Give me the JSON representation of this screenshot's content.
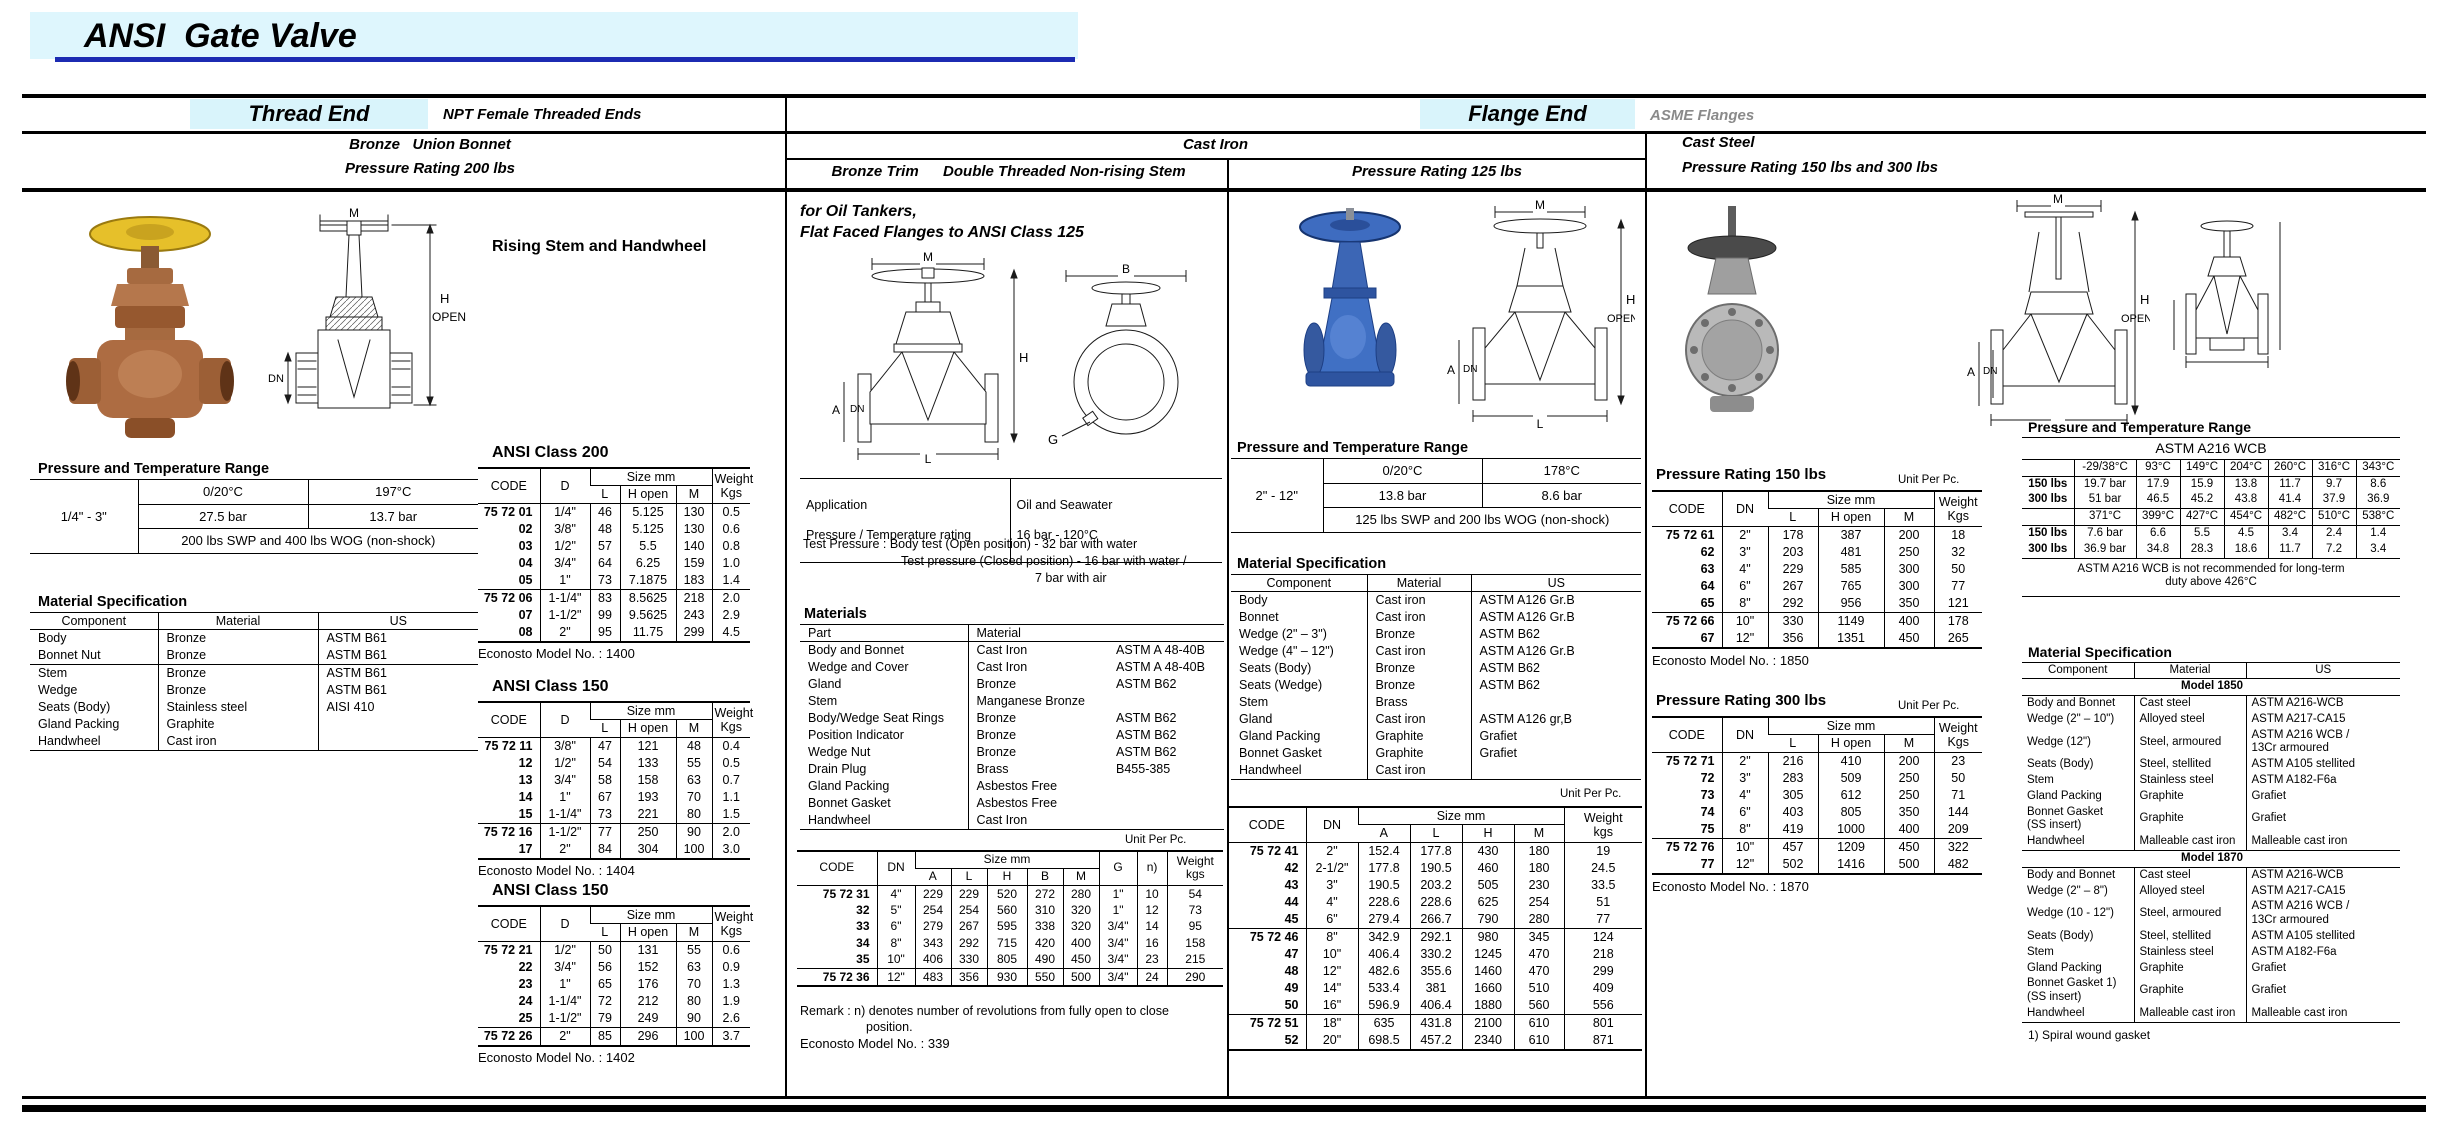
{
  "colors": {
    "accent_blue": "#1c2bb2",
    "band_cyan": "#def6fd",
    "label_cyan": "#d9f4fb",
    "asme_gray": "#8a8a8a"
  },
  "labels": {
    "code": "CODE",
    "d": "D",
    "dn": "DN",
    "size_mm": "Size mm",
    "l": "L",
    "h_open": "H open",
    "m": "M",
    "a": "A",
    "h": "H",
    "b": "B",
    "g": "G",
    "n": "n)",
    "open": "OPEN",
    "weight_kgs": "Weight\nKgs",
    "weight_kgs_lc": "Weight\nkgs",
    "component": "Component",
    "material": "Material",
    "us": "US",
    "part": "Part",
    "unit_per_pc": "Unit Per Pc."
  },
  "diag": {
    "m": "M",
    "h": "H",
    "open": "OPEN",
    "dn": "DN",
    "l": "L",
    "a": "A",
    "b": "B",
    "g": "G"
  },
  "header": {
    "title": "ANSI  Gate Valve",
    "thread_end": "Thread End",
    "npt": "NPT Female Threaded Ends",
    "flange_end": "Flange End",
    "asme": "ASME Flanges",
    "bronze_union": "Bronze   Union Bonnet",
    "rating200": "Pressure Rating 200 lbs",
    "cast_iron": "Cast Iron",
    "bronze_trim_1": "Bronze Trim",
    "bronze_trim_2": "Double Threaded Non-rising Stem",
    "rating125": "Pressure Rating 125 lbs",
    "cast_steel": "Cast Steel",
    "cast_steel_sub": "Pressure Rating 150 lbs and 300 lbs"
  },
  "col1": {
    "rising_stem": "Rising Stem and Handwheel",
    "ptr_title": "Pressure and Temperature Range",
    "ptr": {
      "size": "1/4\" - 3\"",
      "t1": "0/20°C",
      "t2": "197°C",
      "p1": "27.5 bar",
      "p2": "13.7 bar",
      "note": "200 lbs SWP and 400 lbs WOG (non-shock)"
    },
    "matspec_title": "Material Specification",
    "matspec_g1": [
      [
        "Body",
        "Bronze",
        "ASTM B61"
      ],
      [
        "Bonnet Nut",
        "Bronze",
        "ASTM B61"
      ]
    ],
    "matspec_g2": [
      [
        "Stem",
        "Bronze",
        "ASTM B61"
      ],
      [
        "Wedge",
        "Bronze",
        "ASTM B61"
      ],
      [
        "Seats (Body)",
        "Stainless steel",
        "AISI 410"
      ],
      [
        "Gland Packing",
        "Graphite",
        ""
      ],
      [
        "Handwheel",
        "Cast iron",
        ""
      ]
    ],
    "ansi200": {
      "title": "ANSI Class 200",
      "model": "Econosto Model No. : 1400",
      "g1": [
        [
          "75 72 01",
          "1/4\"",
          "46",
          "5.125",
          "130",
          "0.5"
        ],
        [
          "02",
          "3/8\"",
          "48",
          "5.125",
          "130",
          "0.6"
        ],
        [
          "03",
          "1/2\"",
          "57",
          "5.5",
          "140",
          "0.8"
        ],
        [
          "04",
          "3/4\"",
          "64",
          "6.25",
          "159",
          "1.0"
        ],
        [
          "05",
          "1\"",
          "73",
          "7.1875",
          "183",
          "1.4"
        ]
      ],
      "g2": [
        [
          "75 72 06",
          "1-1/4\"",
          "83",
          "8.5625",
          "218",
          "2.0"
        ],
        [
          "07",
          "1-1/2\"",
          "99",
          "9.5625",
          "243",
          "2.9"
        ],
        [
          "08",
          "2\"",
          "95",
          "11.75",
          "299",
          "4.5"
        ]
      ]
    },
    "ansi150a": {
      "title": "ANSI Class 150",
      "model": "Econosto Model No. : 1404",
      "g1": [
        [
          "75 72 11",
          "3/8\"",
          "47",
          "121",
          "48",
          "0.4"
        ],
        [
          "12",
          "1/2\"",
          "54",
          "133",
          "55",
          "0.5"
        ],
        [
          "13",
          "3/4\"",
          "58",
          "158",
          "63",
          "0.7"
        ],
        [
          "14",
          "1\"",
          "67",
          "193",
          "70",
          "1.1"
        ],
        [
          "15",
          "1-1/4\"",
          "73",
          "221",
          "80",
          "1.5"
        ]
      ],
      "g2": [
        [
          "75 72 16",
          "1-1/2\"",
          "77",
          "250",
          "90",
          "2.0"
        ],
        [
          "17",
          "2\"",
          "84",
          "304",
          "100",
          "3.0"
        ]
      ]
    },
    "ansi150b": {
      "title": "ANSI Class 150",
      "model": "Econosto Model No. : 1402",
      "g1": [
        [
          "75 72 21",
          "1/2\"",
          "50",
          "131",
          "55",
          "0.6"
        ],
        [
          "22",
          "3/4\"",
          "56",
          "152",
          "63",
          "0.9"
        ],
        [
          "23",
          "1\"",
          "65",
          "176",
          "70",
          "1.3"
        ],
        [
          "24",
          "1-1/4\"",
          "72",
          "212",
          "80",
          "1.9"
        ],
        [
          "25",
          "1-1/2\"",
          "79",
          "249",
          "90",
          "2.6"
        ]
      ],
      "g2": [
        [
          "75 72 26",
          "2\"",
          "85",
          "296",
          "100",
          "3.7"
        ]
      ]
    }
  },
  "col2": {
    "heading1": "for Oil Tankers,",
    "heading2": "Flat Faced Flanges to ANSI Class 125",
    "app": {
      "r1c1": "Application",
      "r2c1": "Pressure / Temperature rating",
      "r1c2": "Oil and Seawater",
      "r2c2": "16 bar - 120°C"
    },
    "test1": "Test Pressure : Body test (Open position) - 32 bar with water",
    "test2": "Test pressure (Closed position) - 16 bar with water /",
    "test3": "7 bar with air",
    "materials_title": "Materials",
    "materials": [
      [
        "Body and Bonnet",
        "Cast Iron",
        "ASTM A 48-40B"
      ],
      [
        "Wedge and Cover",
        "Cast Iron",
        "ASTM A 48-40B"
      ],
      [
        "Gland",
        "Bronze",
        "ASTM B62"
      ],
      [
        "Stem",
        "Manganese Bronze",
        ""
      ],
      [
        "Body/Wedge Seat Rings",
        "Bronze",
        "ASTM B62"
      ],
      [
        "Position Indicator",
        "Bronze",
        "ASTM B62"
      ],
      [
        "Wedge Nut",
        "Bronze",
        "ASTM B62"
      ],
      [
        "Drain Plug",
        "Brass",
        "B455-385"
      ],
      [
        "Gland Packing",
        "Asbestos Free",
        ""
      ],
      [
        "Bonnet Gasket",
        "Asbestos Free",
        ""
      ],
      [
        "Handwheel",
        "Cast Iron",
        ""
      ]
    ],
    "codes_g1": [
      [
        "75 72 31",
        "4\"",
        "229",
        "229",
        "520",
        "272",
        "280",
        "1\"",
        "10",
        "54"
      ],
      [
        "32",
        "5\"",
        "254",
        "254",
        "560",
        "310",
        "320",
        "1\"",
        "12",
        "73"
      ],
      [
        "33",
        "6\"",
        "279",
        "267",
        "595",
        "338",
        "320",
        "3/4\"",
        "14",
        "95"
      ],
      [
        "34",
        "8\"",
        "343",
        "292",
        "715",
        "420",
        "400",
        "3/4\"",
        "16",
        "158"
      ],
      [
        "35",
        "10\"",
        "406",
        "330",
        "805",
        "490",
        "450",
        "3/4\"",
        "23",
        "215"
      ]
    ],
    "codes_g2": [
      [
        "75 72 36",
        "12\"",
        "483",
        "356",
        "930",
        "550",
        "500",
        "3/4\"",
        "24",
        "290"
      ]
    ],
    "remark1": "Remark : n) denotes number of revolutions from fully open to close",
    "remark2": "position.",
    "model": "Econosto Model No. : 339"
  },
  "col3": {
    "ptr_title": "Pressure and Temperature Range",
    "ptr": {
      "size": "2\" - 12\"",
      "t1": "0/20°C",
      "t2": "178°C",
      "p1": "13.8 bar",
      "p2": "8.6 bar",
      "note": "125 lbs SWP and 200 lbs WOG (non-shock)"
    },
    "matspec_title": "Material Specification",
    "matspec": [
      [
        "Body",
        "Cast iron",
        "ASTM A126 Gr.B"
      ],
      [
        "Bonnet",
        "Cast iron",
        "ASTM A126 Gr.B"
      ],
      [
        "Wedge (2\" – 3\")",
        "Bronze",
        "ASTM B62"
      ],
      [
        "Wedge (4\" – 12\")",
        "Cast iron",
        "ASTM A126 Gr.B"
      ],
      [
        "Seats (Body)",
        "Bronze",
        "ASTM B62"
      ],
      [
        "Seats (Wedge)",
        "Bronze",
        "ASTM B62"
      ],
      [
        "Stem",
        "Brass",
        ""
      ],
      [
        "Gland",
        "Cast iron",
        "ASTM A126 gr,B"
      ],
      [
        "Gland Packing",
        "Graphite",
        "Grafiet"
      ],
      [
        "Bonnet Gasket",
        "Graphite",
        "Grafiet"
      ],
      [
        "Handwheel",
        "Cast iron",
        ""
      ]
    ],
    "codes_g1": [
      [
        "75 72 41",
        "2\"",
        "152.4",
        "177.8",
        "430",
        "180",
        "19"
      ],
      [
        "42",
        "2-1/2\"",
        "177.8",
        "190.5",
        "460",
        "180",
        "24.5"
      ],
      [
        "43",
        "3\"",
        "190.5",
        "203.2",
        "505",
        "230",
        "33.5"
      ],
      [
        "44",
        "4\"",
        "228.6",
        "228.6",
        "625",
        "254",
        "51"
      ],
      [
        "45",
        "6\"",
        "279.4",
        "266.7",
        "790",
        "280",
        "77"
      ]
    ],
    "codes_g2": [
      [
        "75 72 46",
        "8\"",
        "342.9",
        "292.1",
        "980",
        "345",
        "124"
      ],
      [
        "47",
        "10\"",
        "406.4",
        "330.2",
        "1245",
        "470",
        "218"
      ],
      [
        "48",
        "12\"",
        "482.6",
        "355.6",
        "1460",
        "470",
        "299"
      ],
      [
        "49",
        "14\"",
        "533.4",
        "381",
        "1660",
        "510",
        "409"
      ],
      [
        "50",
        "16\"",
        "596.9",
        "406.4",
        "1880",
        "560",
        "556"
      ]
    ],
    "codes_g3": [
      [
        "75 72 51",
        "18\"",
        "635",
        "431.8",
        "2100",
        "610",
        "801"
      ],
      [
        "52",
        "20\"",
        "698.5",
        "457.2",
        "2340",
        "610",
        "871"
      ]
    ]
  },
  "col4": {
    "r150": {
      "title": "Pressure Rating 150 lbs",
      "model": "Econosto Model No. : 1850",
      "g1": [
        [
          "75 72 61",
          "2\"",
          "178",
          "387",
          "200",
          "18"
        ],
        [
          "62",
          "3\"",
          "203",
          "481",
          "250",
          "32"
        ],
        [
          "63",
          "4\"",
          "229",
          "585",
          "300",
          "50"
        ],
        [
          "64",
          "6\"",
          "267",
          "765",
          "300",
          "77"
        ],
        [
          "65",
          "8\"",
          "292",
          "956",
          "350",
          "121"
        ]
      ],
      "g2": [
        [
          "75 72 66",
          "10\"",
          "330",
          "1149",
          "400",
          "178"
        ],
        [
          "67",
          "12\"",
          "356",
          "1351",
          "450",
          "265"
        ]
      ]
    },
    "r300": {
      "title": "Pressure Rating 300 lbs",
      "model": "Econosto Model No. : 1870",
      "g1": [
        [
          "75 72 71",
          "2\"",
          "216",
          "410",
          "200",
          "23"
        ],
        [
          "72",
          "3\"",
          "283",
          "509",
          "250",
          "50"
        ],
        [
          "73",
          "4\"",
          "305",
          "612",
          "250",
          "71"
        ],
        [
          "74",
          "6\"",
          "403",
          "805",
          "350",
          "144"
        ],
        [
          "75",
          "8\"",
          "419",
          "1000",
          "400",
          "209"
        ]
      ],
      "g2": [
        [
          "75 72 76",
          "10\"",
          "457",
          "1209",
          "450",
          "322"
        ],
        [
          "77",
          "12\"",
          "502",
          "1416",
          "500",
          "482"
        ]
      ]
    },
    "ptr_title": "Pressure and Temperature Range",
    "astm": {
      "subtitle": "ASTM A216 WCB",
      "temps1": [
        [
          "",
          "-29/38°C",
          "93°C",
          "149°C",
          "204°C",
          "260°C",
          "316°C",
          "343°C"
        ]
      ],
      "g1": [
        [
          "150 lbs",
          "19.7 bar",
          "17.9",
          "15.9",
          "13.8",
          "11.7",
          "9.7",
          "8.6"
        ],
        [
          "300 lbs",
          "51 bar",
          "46.5",
          "45.2",
          "43.8",
          "41.4",
          "37.9",
          "36.9"
        ]
      ],
      "temps2": [
        [
          "",
          "371°C",
          "399°C",
          "427°C",
          "454°C",
          "482°C",
          "510°C",
          "538°C"
        ]
      ],
      "g2": [
        [
          "150 lbs",
          "7.6 bar",
          "6.6",
          "5.5",
          "4.5",
          "3.4",
          "2.4",
          "1.4"
        ],
        [
          "300 lbs",
          "36.9 bar",
          "34.8",
          "28.3",
          "18.6",
          "11.7",
          "7.2",
          "3.4"
        ]
      ],
      "note": "ASTM A216 WCB is not recommended for long-term\nduty above 426°C"
    },
    "matspec_title": "Material Specification",
    "m1850_label": "Model 1850",
    "m1850": [
      [
        "Body and Bonnet",
        "Cast steel",
        "ASTM A216-WCB"
      ],
      [
        "Wedge (2\" – 10\")",
        "Alloyed steel",
        "ASTM A217-CA15"
      ],
      [
        "Wedge (12\")",
        "Steel, armoured",
        "ASTM A216 WCB /\n13Cr armoured"
      ],
      [
        "Seats (Body)",
        "Steel, stellited",
        "ASTM A105 stellited"
      ],
      [
        "Stem",
        "Stainless steel",
        "ASTM A182-F6a"
      ],
      [
        "Gland Packing",
        "Graphite",
        "Grafiet"
      ],
      [
        "Bonnet Gasket\n(SS insert)",
        "Graphite",
        "Grafiet"
      ],
      [
        "Handwheel",
        "Malleable cast iron",
        "Malleable cast iron"
      ]
    ],
    "m1870_label": "Model 1870",
    "m1870": [
      [
        "Body and Bonnet",
        "Cast steel",
        "ASTM A216-WCB"
      ],
      [
        "Wedge (2\" – 8\")",
        "Alloyed steel",
        "ASTM A217-CA15"
      ],
      [
        "Wedge (10 - 12\")",
        "Steel, armoured",
        "ASTM A216 WCB /\n13Cr armoured"
      ],
      [
        "Seats (Body)",
        "Steel, stellited",
        "ASTM A105 stellited"
      ],
      [
        "Stem",
        "Stainless steel",
        "ASTM A182-F6a"
      ],
      [
        "Gland Packing",
        "Graphite",
        "Grafiet"
      ],
      [
        "Bonnet Gasket 1)\n(SS insert)",
        "Graphite",
        "Grafiet"
      ],
      [
        "Handwheel",
        "Malleable cast iron",
        "Malleable cast iron"
      ]
    ],
    "footnote": "1) Spiral wound gasket"
  }
}
